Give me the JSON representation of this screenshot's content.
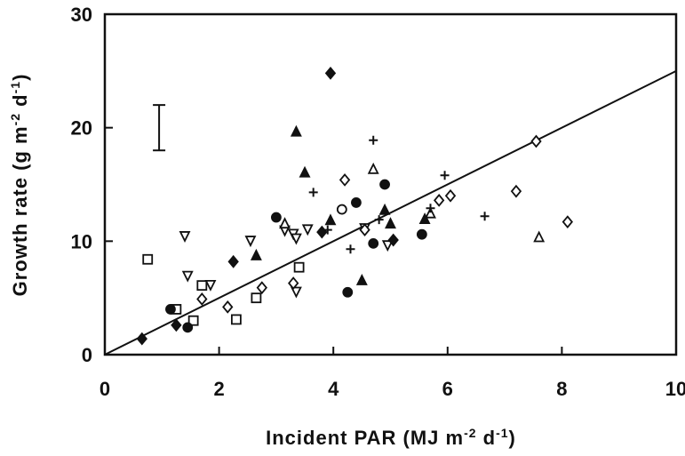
{
  "chart_data": {
    "type": "scatter",
    "xlabel": "Incident PAR (MJ m",
    "xlabel_sup1": "-2",
    "xlabel_mid": " d",
    "xlabel_sup2": "-1",
    "xlabel_end": ")",
    "ylabel": "Growth rate (g m",
    "ylabel_sup1": "-2",
    "ylabel_mid": " d",
    "ylabel_sup2": "-1",
    "ylabel_end": ")",
    "xlim": [
      0,
      10
    ],
    "ylim": [
      0,
      30
    ],
    "xticks": [
      0,
      2,
      4,
      6,
      8,
      10
    ],
    "yticks": [
      0,
      10,
      20,
      30
    ],
    "xtick_labels": [
      "0",
      "2",
      "4",
      "6",
      "8",
      "10"
    ],
    "ytick_labels": [
      "0",
      "10",
      "20",
      "30"
    ],
    "grid": false,
    "error_bar": {
      "x": 0.95,
      "y_low": 18,
      "y_high": 22
    },
    "regression_line": {
      "x": [
        0,
        10
      ],
      "y": [
        0,
        25
      ]
    },
    "series": [
      {
        "marker": "open-square",
        "points": [
          [
            0.75,
            8.4
          ],
          [
            1.25,
            4.0
          ],
          [
            1.55,
            3.0
          ],
          [
            1.7,
            6.1
          ],
          [
            2.3,
            3.1
          ],
          [
            2.65,
            5.0
          ],
          [
            3.4,
            7.7
          ]
        ]
      },
      {
        "marker": "open-triangle-down",
        "points": [
          [
            1.4,
            10.5
          ],
          [
            1.45,
            7.0
          ],
          [
            1.85,
            6.2
          ],
          [
            2.55,
            10.1
          ],
          [
            3.15,
            11.0
          ],
          [
            3.3,
            10.7
          ],
          [
            3.35,
            10.3
          ],
          [
            3.55,
            11.1
          ],
          [
            3.35,
            5.6
          ],
          [
            4.55,
            11.2
          ],
          [
            4.95,
            9.7
          ]
        ]
      },
      {
        "marker": "open-diamond",
        "points": [
          [
            1.7,
            4.9
          ],
          [
            2.15,
            4.2
          ],
          [
            2.75,
            5.9
          ],
          [
            3.3,
            6.3
          ],
          [
            4.2,
            15.4
          ],
          [
            4.55,
            11.0
          ],
          [
            5.85,
            13.6
          ],
          [
            6.05,
            14.0
          ],
          [
            7.2,
            14.4
          ],
          [
            7.55,
            18.8
          ],
          [
            8.1,
            11.7
          ]
        ]
      },
      {
        "marker": "open-circle",
        "points": [
          [
            4.15,
            12.8
          ]
        ]
      },
      {
        "marker": "open-triangle-up",
        "points": [
          [
            3.15,
            11.5
          ],
          [
            4.7,
            16.3
          ],
          [
            5.7,
            12.4
          ],
          [
            7.6,
            10.3
          ]
        ]
      },
      {
        "marker": "filled-triangle-up",
        "points": [
          [
            2.65,
            8.7
          ],
          [
            3.35,
            19.6
          ],
          [
            3.5,
            16.0
          ],
          [
            3.95,
            11.8
          ],
          [
            4.5,
            6.5
          ],
          [
            4.9,
            12.7
          ],
          [
            5.6,
            11.9
          ],
          [
            5.0,
            11.5
          ]
        ]
      },
      {
        "marker": "filled-circle",
        "points": [
          [
            1.15,
            4.0
          ],
          [
            1.45,
            2.4
          ],
          [
            3.0,
            12.1
          ],
          [
            4.25,
            5.5
          ],
          [
            4.4,
            13.4
          ],
          [
            4.7,
            9.8
          ],
          [
            4.9,
            15.0
          ],
          [
            5.55,
            10.6
          ]
        ]
      },
      {
        "marker": "filled-diamond",
        "points": [
          [
            0.65,
            1.4
          ],
          [
            1.25,
            2.6
          ],
          [
            2.25,
            8.2
          ],
          [
            3.95,
            24.8
          ],
          [
            3.8,
            10.8
          ],
          [
            5.05,
            10.1
          ]
        ]
      },
      {
        "marker": "plus",
        "points": [
          [
            3.65,
            14.3
          ],
          [
            3.9,
            11.0
          ],
          [
            4.3,
            9.3
          ],
          [
            4.7,
            18.9
          ],
          [
            4.8,
            11.9
          ],
          [
            5.7,
            12.9
          ],
          [
            5.95,
            15.8
          ],
          [
            6.65,
            12.2
          ]
        ]
      }
    ]
  }
}
